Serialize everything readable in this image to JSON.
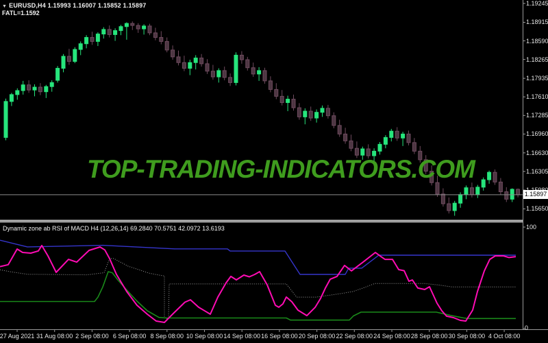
{
  "header": {
    "dropdown_icon": "▼",
    "symbol_line": "EURUSD,H4  1.15993 1.16007 1.15852 1.15897",
    "fatl_line": "FATL=1.1592"
  },
  "watermark": {
    "text": "TOP-TRADING-INDICATORS.COM",
    "color": "#3f9c1e"
  },
  "indicator_panel": {
    "label": "Dynamic zone ab RSI of MACD H4 (12,26,14) 69.2840 70.5751 42.0972 13.6193",
    "scale_top": "100",
    "scale_bottom": "0"
  },
  "price_box": {
    "value": "1.15897"
  },
  "colors": {
    "background": "#000000",
    "bull": "#26e57c",
    "bear_fill": "#4d3642",
    "bear_border": "#6e4a5e",
    "axis": "#9a9a9a",
    "separator": "#9c9c9c",
    "price_line": "#8c8c8c",
    "upper_line": "#3535cc",
    "main_line": "#ff0cb4",
    "mid_line": "#9a9a9a",
    "lower_line": "#1a8a1a",
    "watermark": "#3f9c1e"
  },
  "chart_data": [
    {
      "type": "candlestick",
      "title": "EURUSD,H4",
      "ylim": [
        1.1565,
        1.19245
      ],
      "current_price": 1.15897,
      "y_ticks": [
        "1.19245",
        "1.18915",
        "1.18590",
        "1.18265",
        "1.17935",
        "1.17610",
        "1.17285",
        "1.16960",
        "1.16630",
        "1.16305",
        "1.15980",
        "1.15650"
      ],
      "x_labels": [
        "27 Aug 2021",
        "31 Aug 08:00",
        "2 Sep 08:00",
        "6 Sep 08:00",
        "8 Sep 08:00",
        "10 Sep 08:00",
        "14 Sep 08:00",
        "16 Sep 08:00",
        "20 Sep 08:00",
        "22 Sep 08:00",
        "24 Sep 08:00",
        "28 Sep 08:00",
        "30 Sep 08:00",
        "4 Oct 08:00"
      ],
      "ohlc": [
        [
          1.169,
          1.1758,
          1.1685,
          1.1753
        ],
        [
          1.1753,
          1.1768,
          1.1745,
          1.1765
        ],
        [
          1.1765,
          1.1776,
          1.1756,
          1.1772
        ],
        [
          1.1772,
          1.1789,
          1.1765,
          1.1782
        ],
        [
          1.1782,
          1.179,
          1.1768,
          1.1773
        ],
        [
          1.1773,
          1.1783,
          1.1762,
          1.1778
        ],
        [
          1.1778,
          1.1785,
          1.1764,
          1.177
        ],
        [
          1.177,
          1.1782,
          1.1759,
          1.1779
        ],
        [
          1.1779,
          1.179,
          1.177,
          1.1786
        ],
        [
          1.179,
          1.1815,
          1.1786,
          1.1811
        ],
        [
          1.1811,
          1.1836,
          1.1804,
          1.1832
        ],
        [
          1.1832,
          1.1845,
          1.1817,
          1.1823
        ],
        [
          1.1823,
          1.1848,
          1.182,
          1.1844
        ],
        [
          1.1844,
          1.1858,
          1.1834,
          1.1854
        ],
        [
          1.1854,
          1.1869,
          1.1846,
          1.1865
        ],
        [
          1.1865,
          1.1875,
          1.1852,
          1.1858
        ],
        [
          1.1858,
          1.1874,
          1.185,
          1.1871
        ],
        [
          1.1871,
          1.1883,
          1.1863,
          1.1879
        ],
        [
          1.1879,
          1.1886,
          1.1865,
          1.187
        ],
        [
          1.187,
          1.1881,
          1.1859,
          1.1877
        ],
        [
          1.1877,
          1.1887,
          1.1869,
          1.1884
        ],
        [
          1.1884,
          1.18915,
          1.1861,
          1.18895
        ],
        [
          1.18895,
          1.1893,
          1.1878,
          1.1886
        ],
        [
          1.1886,
          1.189,
          1.1873,
          1.188
        ],
        [
          1.188,
          1.1888,
          1.187,
          1.1885
        ],
        [
          1.1885,
          1.1889,
          1.1869,
          1.1873
        ],
        [
          1.1873,
          1.1882,
          1.186,
          1.1865
        ],
        [
          1.1865,
          1.1876,
          1.1853,
          1.1858
        ],
        [
          1.1858,
          1.1865,
          1.1839,
          1.1843
        ],
        [
          1.1843,
          1.1851,
          1.1826,
          1.1831
        ],
        [
          1.1831,
          1.1842,
          1.1816,
          1.1821
        ],
        [
          1.1821,
          1.1833,
          1.1806,
          1.1811
        ],
        [
          1.1811,
          1.1826,
          1.1799,
          1.1821
        ],
        [
          1.1821,
          1.1834,
          1.1809,
          1.1829
        ],
        [
          1.1829,
          1.1836,
          1.1814,
          1.1819
        ],
        [
          1.1819,
          1.1827,
          1.1801,
          1.1806
        ],
        [
          1.1806,
          1.1817,
          1.1791,
          1.1796
        ],
        [
          1.1796,
          1.1811,
          1.1786,
          1.1807
        ],
        [
          1.1807,
          1.1814,
          1.179,
          1.1795
        ],
        [
          1.1795,
          1.1802,
          1.178,
          1.1786
        ],
        [
          1.1786,
          1.1839,
          1.1781,
          1.1834
        ],
        [
          1.1834,
          1.1841,
          1.1819,
          1.1826
        ],
        [
          1.1826,
          1.1831,
          1.1807,
          1.1812
        ],
        [
          1.1812,
          1.1821,
          1.1796,
          1.1801
        ],
        [
          1.1801,
          1.1813,
          1.1789,
          1.1807
        ],
        [
          1.1807,
          1.1812,
          1.1784,
          1.1789
        ],
        [
          1.1789,
          1.1797,
          1.1769,
          1.1774
        ],
        [
          1.1774,
          1.1785,
          1.1757,
          1.1762
        ],
        [
          1.1762,
          1.1773,
          1.1746,
          1.1751
        ],
        [
          1.1751,
          1.1763,
          1.1736,
          1.1757
        ],
        [
          1.1757,
          1.1765,
          1.1737,
          1.1742
        ],
        [
          1.1742,
          1.175,
          1.1721,
          1.1726
        ],
        [
          1.1726,
          1.1741,
          1.1713,
          1.1736
        ],
        [
          1.1736,
          1.1744,
          1.1719,
          1.1724
        ],
        [
          1.1724,
          1.1739,
          1.1716,
          1.1734
        ],
        [
          1.1734,
          1.1746,
          1.1726,
          1.1741
        ],
        [
          1.1741,
          1.1747,
          1.1723,
          1.1728
        ],
        [
          1.1728,
          1.1734,
          1.1706,
          1.1711
        ],
        [
          1.1711,
          1.1721,
          1.1691,
          1.1696
        ],
        [
          1.1696,
          1.1707,
          1.1679,
          1.1684
        ],
        [
          1.1684,
          1.1695,
          1.1666,
          1.1671
        ],
        [
          1.1671,
          1.1683,
          1.1654,
          1.1659
        ],
        [
          1.1659,
          1.1674,
          1.1651,
          1.167
        ],
        [
          1.167,
          1.1678,
          1.1653,
          1.1658
        ],
        [
          1.1658,
          1.1671,
          1.1646,
          1.1666
        ],
        [
          1.1666,
          1.1682,
          1.166,
          1.1678
        ],
        [
          1.1678,
          1.1694,
          1.1671,
          1.169
        ],
        [
          1.169,
          1.1705,
          1.1683,
          1.1701
        ],
        [
          1.1701,
          1.1708,
          1.1684,
          1.1689
        ],
        [
          1.1689,
          1.17,
          1.1675,
          1.1696
        ],
        [
          1.1696,
          1.1702,
          1.1676,
          1.1681
        ],
        [
          1.1681,
          1.1689,
          1.1661,
          1.1666
        ],
        [
          1.1666,
          1.1675,
          1.1646,
          1.1651
        ],
        [
          1.1651,
          1.1659,
          1.1626,
          1.1631
        ],
        [
          1.1631,
          1.1641,
          1.1606,
          1.1611
        ],
        [
          1.1611,
          1.1623,
          1.1586,
          1.1591
        ],
        [
          1.1591,
          1.1601,
          1.1569,
          1.1574
        ],
        [
          1.1574,
          1.1585,
          1.1557,
          1.1562
        ],
        [
          1.1562,
          1.1579,
          1.1553,
          1.1575
        ],
        [
          1.1575,
          1.1594,
          1.1567,
          1.159
        ],
        [
          1.159,
          1.1606,
          1.1582,
          1.1602
        ],
        [
          1.1602,
          1.1611,
          1.1585,
          1.159
        ],
        [
          1.159,
          1.1607,
          1.1584,
          1.1603
        ],
        [
          1.1603,
          1.162,
          1.1597,
          1.1616
        ],
        [
          1.1616,
          1.1632,
          1.1609,
          1.1629
        ],
        [
          1.1629,
          1.1634,
          1.1607,
          1.1612
        ],
        [
          1.1612,
          1.1619,
          1.159,
          1.1595
        ],
        [
          1.1595,
          1.1603,
          1.1577,
          1.1582
        ],
        [
          1.1582,
          1.1601,
          1.1577,
          1.15993
        ],
        [
          1.15993,
          1.16007,
          1.15852,
          1.15897
        ]
      ]
    },
    {
      "type": "line",
      "title": "Dynamic zone ab RSI of MACD (12,26,14)",
      "ylim": [
        0,
        100
      ],
      "values_display": [
        69.284,
        70.5751,
        42.0972,
        13.6193
      ],
      "series": [
        {
          "name": "upper-zone",
          "color": "#3535cc",
          "width": 1.4,
          "dash": "",
          "points": [
            [
              0,
              87
            ],
            [
              40,
              80.5
            ],
            [
              150,
              82
            ],
            [
              255,
              78.5
            ],
            [
              332,
              78.5
            ],
            [
              336,
              76.4
            ],
            [
              416,
              76.4
            ],
            [
              438,
              53.4
            ],
            [
              504,
              53.4
            ],
            [
              509,
              59.5
            ],
            [
              528,
              59.5
            ],
            [
              553,
              72.3
            ],
            [
              753,
              72.3
            ]
          ]
        },
        {
          "name": "mid-zone",
          "color": "#9a9a9a",
          "width": 1,
          "dash": "1,2",
          "points": [
            [
              0,
              58
            ],
            [
              15,
              56
            ],
            [
              40,
              53.5
            ],
            [
              127,
              53
            ],
            [
              152,
              55
            ],
            [
              160,
              69
            ],
            [
              166,
              69
            ],
            [
              187,
              61.5
            ],
            [
              218,
              54.5
            ],
            [
              230,
              53
            ],
            [
              238,
              52
            ],
            [
              240,
              52
            ],
            [
              240,
              11.5
            ],
            [
              243,
              9.5
            ],
            [
              246,
              10
            ],
            [
              247,
              44
            ],
            [
              418,
              44
            ],
            [
              433,
              31
            ],
            [
              462,
              31
            ],
            [
              498,
              34.5
            ],
            [
              515,
              36.5
            ],
            [
              530,
              40
            ],
            [
              547,
              44.4
            ],
            [
              620,
              44.4
            ],
            [
              640,
              43
            ],
            [
              660,
              41
            ],
            [
              753,
              41
            ]
          ]
        },
        {
          "name": "lower-zone",
          "color": "#1a8a1a",
          "width": 1.6,
          "dash": "",
          "points": [
            [
              0,
              26.7
            ],
            [
              138,
              26.7
            ],
            [
              143,
              31
            ],
            [
              150,
              41
            ],
            [
              158,
              56.1
            ],
            [
              164,
              55
            ],
            [
              172,
              48
            ],
            [
              185,
              38
            ],
            [
              200,
              27
            ],
            [
              215,
              17.6
            ],
            [
              232,
              11
            ],
            [
              242,
              10.5
            ],
            [
              418,
              10.5
            ],
            [
              424,
              8.4
            ],
            [
              510,
              8.4
            ],
            [
              516,
              12.5
            ],
            [
              527,
              16.2
            ],
            [
              637,
              16.2
            ],
            [
              658,
              13
            ],
            [
              677,
              10.5
            ],
            [
              683,
              9.9
            ],
            [
              753,
              9.9
            ]
          ]
        },
        {
          "name": "rsi-of-macd",
          "color": "#ff0cb4",
          "width": 2,
          "dash": "",
          "points": [
            [
              0,
              61
            ],
            [
              12,
              63
            ],
            [
              25,
              78.4
            ],
            [
              33,
              75
            ],
            [
              45,
              74.3
            ],
            [
              56,
              76.5
            ],
            [
              61,
              81.8
            ],
            [
              70,
              71.6
            ],
            [
              82,
              55.4
            ],
            [
              100,
              68.2
            ],
            [
              112,
              65.5
            ],
            [
              130,
              77
            ],
            [
              146,
              80.4
            ],
            [
              153,
              77.5
            ],
            [
              160,
              68.9
            ],
            [
              170,
              53.4
            ],
            [
              185,
              36.5
            ],
            [
              200,
              23
            ],
            [
              215,
              14.2
            ],
            [
              228,
              7.4
            ],
            [
              240,
              6.1
            ],
            [
              255,
              16.2
            ],
            [
              270,
              26
            ],
            [
              278,
              28.4
            ],
            [
              290,
              21
            ],
            [
              300,
              17
            ],
            [
              307,
              14.2
            ],
            [
              318,
              31
            ],
            [
              330,
              45
            ],
            [
              337,
              51.4
            ],
            [
              345,
              48
            ],
            [
              356,
              52.7
            ],
            [
              364,
              51
            ],
            [
              372,
              53.4
            ],
            [
              379,
              56.1
            ],
            [
              390,
              43.2
            ],
            [
              402,
              23
            ],
            [
              407,
              21
            ],
            [
              413,
              24.3
            ],
            [
              418,
              31.1
            ],
            [
              426,
              26.4
            ],
            [
              435,
              18.2
            ],
            [
              448,
              12.8
            ],
            [
              460,
              20.9
            ],
            [
              468,
              29.7
            ],
            [
              475,
              39.9
            ],
            [
              482,
              48.6
            ],
            [
              492,
              51.4
            ],
            [
              503,
              62.2
            ],
            [
              513,
              56.8
            ],
            [
              530,
              65.5
            ],
            [
              548,
              75
            ],
            [
              556,
              71
            ],
            [
              562,
              68.2
            ],
            [
              573,
              68.2
            ],
            [
              582,
              58.1
            ],
            [
              590,
              57
            ],
            [
              597,
              46.6
            ],
            [
              602,
              47.9
            ],
            [
              610,
              39.9
            ],
            [
              620,
              38.5
            ],
            [
              627,
              41.2
            ],
            [
              638,
              25
            ],
            [
              645,
              17.6
            ],
            [
              652,
              12.2
            ],
            [
              662,
              10.8
            ],
            [
              672,
              8.1
            ],
            [
              680,
              7.4
            ],
            [
              690,
              18.2
            ],
            [
              697,
              36.5
            ],
            [
              707,
              56.8
            ],
            [
              715,
              68.2
            ],
            [
              723,
              71.6
            ],
            [
              735,
              71.6
            ],
            [
              743,
              70
            ],
            [
              753,
              70.9
            ]
          ]
        }
      ]
    }
  ]
}
